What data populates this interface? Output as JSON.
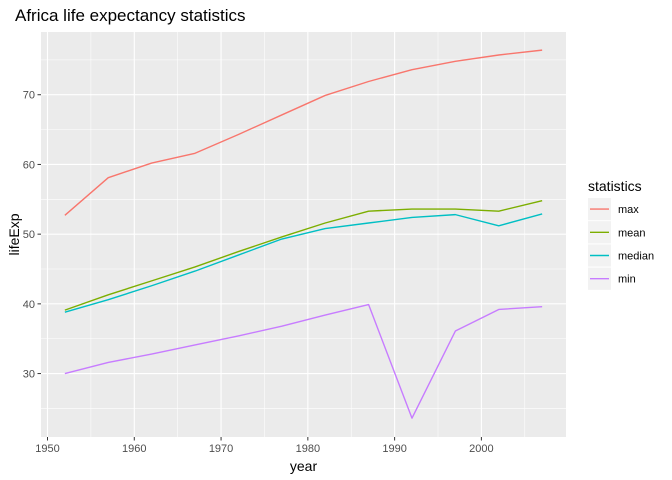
{
  "chart_data": {
    "type": "line",
    "title": "Africa life expectancy statistics",
    "xlabel": "year",
    "ylabel": "lifeExp",
    "x": [
      1952,
      1957,
      1962,
      1967,
      1972,
      1977,
      1982,
      1987,
      1992,
      1997,
      2002,
      2007
    ],
    "xlim": [
      1949.25,
      2009.75
    ],
    "ylim": [
      20.9,
      79.0
    ],
    "x_ticks": [
      1950,
      1960,
      1970,
      1980,
      1990,
      2000
    ],
    "y_ticks": [
      30,
      40,
      50,
      60,
      70
    ],
    "grid": true,
    "legend": {
      "title": "statistics",
      "position": "right"
    },
    "series": [
      {
        "name": "max",
        "color": "#F8766D",
        "values": [
          52.7,
          58.1,
          60.2,
          61.6,
          64.3,
          67.1,
          69.9,
          71.9,
          73.6,
          74.8,
          75.7,
          76.4
        ]
      },
      {
        "name": "mean",
        "color": "#7CAE00",
        "values": [
          39.1,
          41.3,
          43.3,
          45.3,
          47.5,
          49.6,
          51.6,
          53.3,
          53.6,
          53.6,
          53.3,
          54.8
        ]
      },
      {
        "name": "median",
        "color": "#00BFC4",
        "values": [
          38.8,
          40.6,
          42.6,
          44.7,
          47.0,
          49.3,
          50.8,
          51.6,
          52.4,
          52.8,
          51.2,
          52.9
        ]
      },
      {
        "name": "min",
        "color": "#C77CFF",
        "values": [
          30.0,
          31.6,
          32.8,
          34.1,
          35.4,
          36.8,
          38.4,
          39.9,
          23.6,
          36.1,
          39.2,
          39.6
        ]
      }
    ]
  }
}
